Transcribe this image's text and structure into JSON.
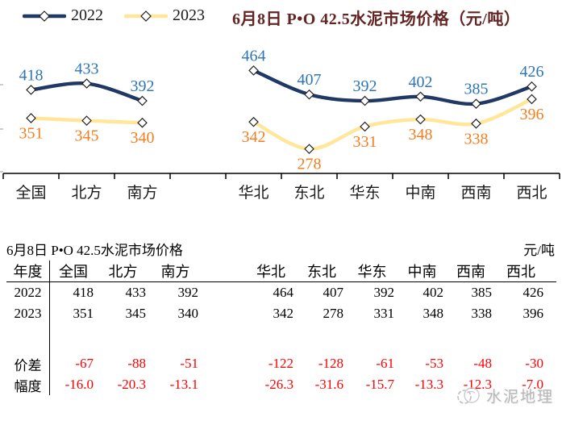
{
  "title": "6月8日 P•O 42.5水泥市场价格（元/吨）",
  "chart_data": {
    "type": "line",
    "categories": [
      "全国",
      "北方",
      "南方",
      "华北",
      "东北",
      "华东",
      "中南",
      "西南",
      "西北"
    ],
    "slot_index": [
      0,
      1,
      2,
      4,
      5,
      6,
      7,
      8,
      9
    ],
    "total_slots": 10,
    "series": [
      {
        "name": "2022",
        "values": [
          418,
          433,
          392,
          464,
          407,
          392,
          402,
          385,
          426
        ],
        "line_color": "#1F3864",
        "label_color": "#2E75B6",
        "label_position": "above"
      },
      {
        "name": "2023",
        "values": [
          351,
          345,
          340,
          342,
          278,
          331,
          348,
          338,
          396
        ],
        "line_color": "#FFE699",
        "label_color": "#F57E20",
        "label_position": "below"
      }
    ],
    "ylim": [
      220,
      545
    ],
    "marker": "diamond",
    "legend_position": "top-left",
    "grid": false,
    "xlabel": "",
    "ylabel": ""
  },
  "table": {
    "title": "6月8日 P•O 42.5水泥市场价格",
    "unit": "元/吨",
    "row_header": "年度",
    "columns": [
      "全国",
      "北方",
      "南方",
      "华北",
      "东北",
      "华东",
      "中南",
      "西南",
      "西北"
    ],
    "rows": [
      {
        "label": "2022",
        "values": [
          "418",
          "433",
          "392",
          "464",
          "407",
          "392",
          "402",
          "385",
          "426"
        ],
        "color": "#000000"
      },
      {
        "label": "2023",
        "values": [
          "351",
          "345",
          "340",
          "342",
          "278",
          "331",
          "348",
          "338",
          "396"
        ],
        "color": "#000000"
      },
      {
        "label": "价差",
        "values": [
          "-67",
          "-88",
          "-51",
          "-122",
          "-128",
          "-61",
          "-53",
          "-48",
          "-30"
        ],
        "color": "#FF0000"
      },
      {
        "label": "幅度",
        "values": [
          "-16.0",
          "-20.3",
          "-13.1",
          "-26.3",
          "-31.6",
          "-15.7",
          "-13.3",
          "-12.3",
          "-7.0"
        ],
        "color": "#FF0000"
      }
    ]
  },
  "watermark": {
    "text": "水泥地理"
  },
  "colors": {
    "title": "#632423",
    "axis": "#000000",
    "negative": "#FF0000",
    "watermark": "#ABABAB"
  }
}
